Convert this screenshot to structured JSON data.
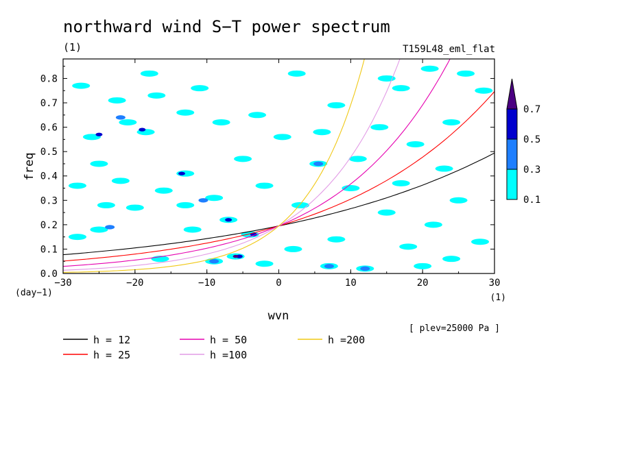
{
  "chart_data": {
    "type": "heatmap",
    "title": "northward wind S−T power spectrum",
    "subtitle": "(1)",
    "run_label": "T159L48_eml_flat",
    "xlabel": "wvn",
    "ylabel": "freq",
    "x_unit": "(1)",
    "y_unit": "(day−1)",
    "xlim": [
      -30,
      30
    ],
    "ylim": [
      0,
      0.88
    ],
    "x_ticks": [
      -30,
      -20,
      -10,
      0,
      10,
      20,
      30
    ],
    "x_tick_labels": [
      "−30",
      "−20",
      "−10",
      "0",
      "10",
      "20",
      "30"
    ],
    "y_ticks": [
      0.0,
      0.1,
      0.2,
      0.3,
      0.4,
      0.5,
      0.6,
      0.7,
      0.8
    ],
    "y_tick_labels": [
      "0.0",
      "0.1",
      "0.2",
      "0.3",
      "0.4",
      "0.5",
      "0.6",
      "0.7",
      "0.8"
    ],
    "plev_note": "[ plev=25000 Pa ]",
    "colorbar": {
      "levels": [
        0.1,
        0.3,
        0.5,
        0.7
      ],
      "level_labels": [
        "0.1",
        "0.3",
        "0.5",
        "0.7"
      ],
      "colors": [
        "#00ffff",
        "#1e7fff",
        "#0000cd",
        "#4b0082"
      ]
    },
    "contour_patches": [
      {
        "x": -6.0,
        "y": 0.07,
        "level": 0.7
      },
      {
        "x": -5.5,
        "y": 0.07,
        "level": 0.5
      },
      {
        "x": -3.5,
        "y": 0.16,
        "level": 0.5
      },
      {
        "x": -25.0,
        "y": 0.57,
        "level": 0.5
      },
      {
        "x": -22.0,
        "y": 0.64,
        "level": 0.3
      },
      {
        "x": -19.0,
        "y": 0.59,
        "level": 0.5
      },
      {
        "x": -13.5,
        "y": 0.41,
        "level": 0.5
      },
      {
        "x": -10.5,
        "y": 0.3,
        "level": 0.3
      },
      {
        "x": -7.0,
        "y": 0.22,
        "level": 0.5
      },
      {
        "x": -23.5,
        "y": 0.19,
        "level": 0.3
      },
      {
        "x": 5.5,
        "y": 0.45,
        "level": 0.3
      },
      {
        "x": 12.0,
        "y": 0.02,
        "level": 0.3
      },
      {
        "x": 7.0,
        "y": 0.03,
        "level": 0.3
      },
      {
        "x": -9.0,
        "y": 0.05,
        "level": 0.3
      },
      {
        "x": -26.0,
        "y": 0.56,
        "level": 0.1
      },
      {
        "x": -21.0,
        "y": 0.62,
        "level": 0.1
      },
      {
        "x": -18.5,
        "y": 0.58,
        "level": 0.1
      },
      {
        "x": -25.0,
        "y": 0.45,
        "level": 0.1
      },
      {
        "x": -22.0,
        "y": 0.38,
        "level": 0.1
      },
      {
        "x": -16.0,
        "y": 0.34,
        "level": 0.1
      },
      {
        "x": -13.0,
        "y": 0.41,
        "level": 0.1
      },
      {
        "x": -13.0,
        "y": 0.28,
        "level": 0.1
      },
      {
        "x": -9.0,
        "y": 0.31,
        "level": 0.1
      },
      {
        "x": -7.0,
        "y": 0.22,
        "level": 0.1
      },
      {
        "x": -4.0,
        "y": 0.16,
        "level": 0.1
      },
      {
        "x": -6.0,
        "y": 0.07,
        "level": 0.1
      },
      {
        "x": -9.0,
        "y": 0.05,
        "level": 0.1
      },
      {
        "x": -25.0,
        "y": 0.18,
        "level": 0.1
      },
      {
        "x": -28.0,
        "y": 0.15,
        "level": 0.1
      },
      {
        "x": -28.0,
        "y": 0.36,
        "level": 0.1
      },
      {
        "x": -27.5,
        "y": 0.77,
        "level": 0.1
      },
      {
        "x": -22.5,
        "y": 0.71,
        "level": 0.1
      },
      {
        "x": -18.0,
        "y": 0.82,
        "level": 0.1
      },
      {
        "x": -11.0,
        "y": 0.76,
        "level": 0.1
      },
      {
        "x": -13.0,
        "y": 0.66,
        "level": 0.1
      },
      {
        "x": -17.0,
        "y": 0.73,
        "level": 0.1
      },
      {
        "x": -8.0,
        "y": 0.62,
        "level": 0.1
      },
      {
        "x": -5.0,
        "y": 0.47,
        "level": 0.1
      },
      {
        "x": -2.0,
        "y": 0.36,
        "level": 0.1
      },
      {
        "x": 0.5,
        "y": 0.56,
        "level": 0.1
      },
      {
        "x": 2.5,
        "y": 0.82,
        "level": 0.1
      },
      {
        "x": 8.0,
        "y": 0.69,
        "level": 0.1
      },
      {
        "x": 15.0,
        "y": 0.8,
        "level": 0.1
      },
      {
        "x": 21.0,
        "y": 0.84,
        "level": 0.1
      },
      {
        "x": 17.0,
        "y": 0.76,
        "level": 0.1
      },
      {
        "x": 24.0,
        "y": 0.62,
        "level": 0.1
      },
      {
        "x": 26.0,
        "y": 0.82,
        "level": 0.1
      },
      {
        "x": 28.5,
        "y": 0.75,
        "level": 0.1
      },
      {
        "x": 19.0,
        "y": 0.53,
        "level": 0.1
      },
      {
        "x": 14.0,
        "y": 0.6,
        "level": 0.1
      },
      {
        "x": 5.5,
        "y": 0.45,
        "level": 0.1
      },
      {
        "x": 10.0,
        "y": 0.35,
        "level": 0.1
      },
      {
        "x": 3.0,
        "y": 0.28,
        "level": 0.1
      },
      {
        "x": 17.0,
        "y": 0.37,
        "level": 0.1
      },
      {
        "x": 23.0,
        "y": 0.43,
        "level": 0.1
      },
      {
        "x": 25.0,
        "y": 0.3,
        "level": 0.1
      },
      {
        "x": 15.0,
        "y": 0.25,
        "level": 0.1
      },
      {
        "x": 21.5,
        "y": 0.2,
        "level": 0.1
      },
      {
        "x": 28.0,
        "y": 0.13,
        "level": 0.1
      },
      {
        "x": 18.0,
        "y": 0.11,
        "level": 0.1
      },
      {
        "x": 12.0,
        "y": 0.02,
        "level": 0.1
      },
      {
        "x": 7.0,
        "y": 0.03,
        "level": 0.1
      },
      {
        "x": 2.0,
        "y": 0.1,
        "level": 0.1
      },
      {
        "x": 8.0,
        "y": 0.14,
        "level": 0.1
      },
      {
        "x": 24.0,
        "y": 0.06,
        "level": 0.1
      },
      {
        "x": 20.0,
        "y": 0.03,
        "level": 0.1
      },
      {
        "x": -2.0,
        "y": 0.04,
        "level": 0.1
      },
      {
        "x": -16.5,
        "y": 0.06,
        "level": 0.1
      },
      {
        "x": -12.0,
        "y": 0.18,
        "level": 0.1
      },
      {
        "x": -20.0,
        "y": 0.27,
        "level": 0.1
      },
      {
        "x": -24.0,
        "y": 0.28,
        "level": 0.1
      },
      {
        "x": -3.0,
        "y": 0.65,
        "level": 0.1
      },
      {
        "x": 6.0,
        "y": 0.58,
        "level": 0.1
      },
      {
        "x": 11.0,
        "y": 0.47,
        "level": 0.1
      }
    ],
    "series": [
      {
        "name": "h = 12",
        "h": 12,
        "color": "#000000"
      },
      {
        "name": "h = 25",
        "h": 25,
        "color": "#ff0000"
      },
      {
        "name": "h = 50",
        "h": 50,
        "color": "#e600b0"
      },
      {
        "name": "h =100",
        "h": 100,
        "color": "#e29be6"
      },
      {
        "name": "h =200",
        "h": 200,
        "color": "#f0c814"
      }
    ]
  }
}
